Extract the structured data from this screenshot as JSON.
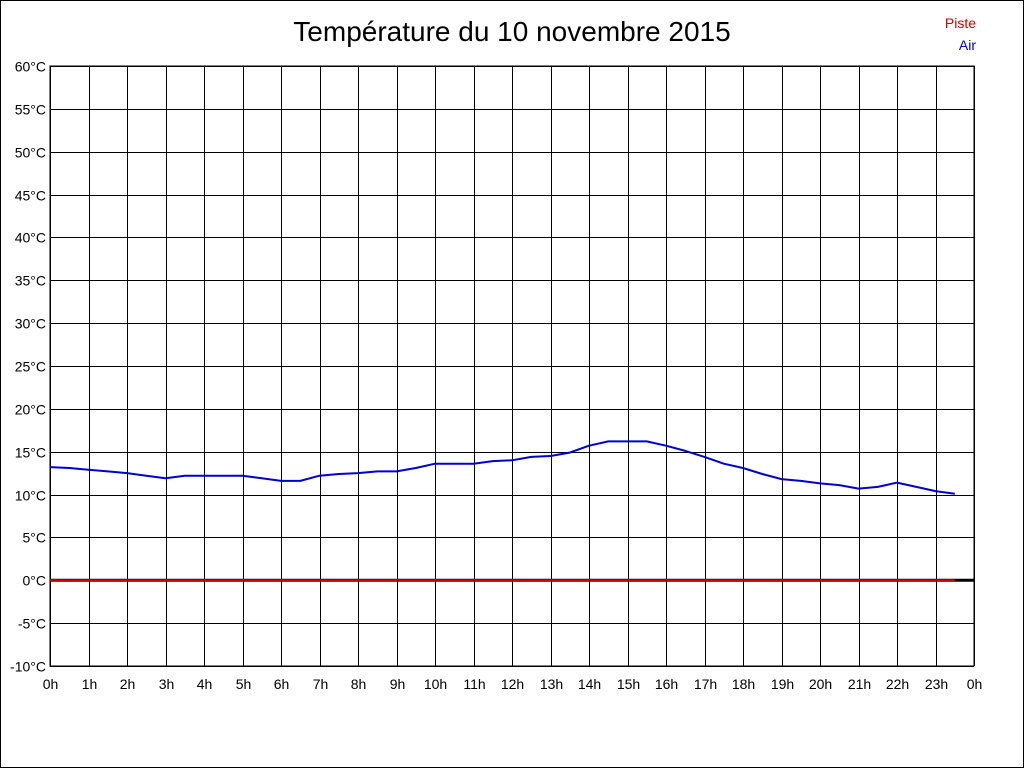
{
  "chart_data": {
    "type": "line",
    "title": "Température du 10 novembre 2015",
    "xlabel": "",
    "ylabel": "",
    "x_ticks": [
      "0h",
      "1h",
      "2h",
      "3h",
      "4h",
      "5h",
      "6h",
      "7h",
      "8h",
      "9h",
      "10h",
      "11h",
      "12h",
      "13h",
      "14h",
      "15h",
      "16h",
      "17h",
      "18h",
      "19h",
      "20h",
      "21h",
      "22h",
      "23h",
      "0h"
    ],
    "y_ticks": [
      "60°C",
      "55°C",
      "50°C",
      "45°C",
      "40°C",
      "35°C",
      "30°C",
      "25°C",
      "20°C",
      "15°C",
      "10°C",
      "5°C",
      "0°C",
      "-5°C",
      "-10°C"
    ],
    "xlim": [
      0,
      24
    ],
    "ylim": [
      -10,
      60
    ],
    "grid": true,
    "legend_position": "top-right",
    "series": [
      {
        "name": "Piste",
        "color": "#cc0000",
        "x": [
          0,
          23.5
        ],
        "y": [
          0,
          0
        ]
      },
      {
        "name": "Air",
        "color": "#0000cc",
        "x": [
          0,
          0.5,
          1,
          1.5,
          2,
          2.5,
          3,
          3.5,
          4,
          4.5,
          5,
          5.5,
          6,
          6.5,
          7,
          7.5,
          8,
          8.5,
          9,
          9.5,
          10,
          10.5,
          11,
          11.5,
          12,
          12.5,
          13,
          13.5,
          14,
          14.5,
          15,
          15.5,
          16,
          16.5,
          17,
          17.5,
          18,
          18.5,
          19,
          19.5,
          20,
          20.5,
          21,
          21.5,
          22,
          22.5,
          23,
          23.5
        ],
        "y": [
          13.2,
          13.1,
          12.9,
          12.7,
          12.5,
          12.2,
          11.9,
          12.2,
          12.2,
          12.2,
          12.2,
          11.9,
          11.6,
          11.6,
          12.2,
          12.4,
          12.5,
          12.7,
          12.7,
          13.1,
          13.6,
          13.6,
          13.6,
          13.9,
          14.0,
          14.4,
          14.5,
          14.9,
          15.7,
          16.2,
          16.2,
          16.2,
          15.7,
          15.1,
          14.4,
          13.6,
          13.1,
          12.4,
          11.8,
          11.6,
          11.3,
          11.1,
          10.7,
          10.9,
          11.4,
          10.9,
          10.4,
          10.1
        ]
      }
    ]
  }
}
